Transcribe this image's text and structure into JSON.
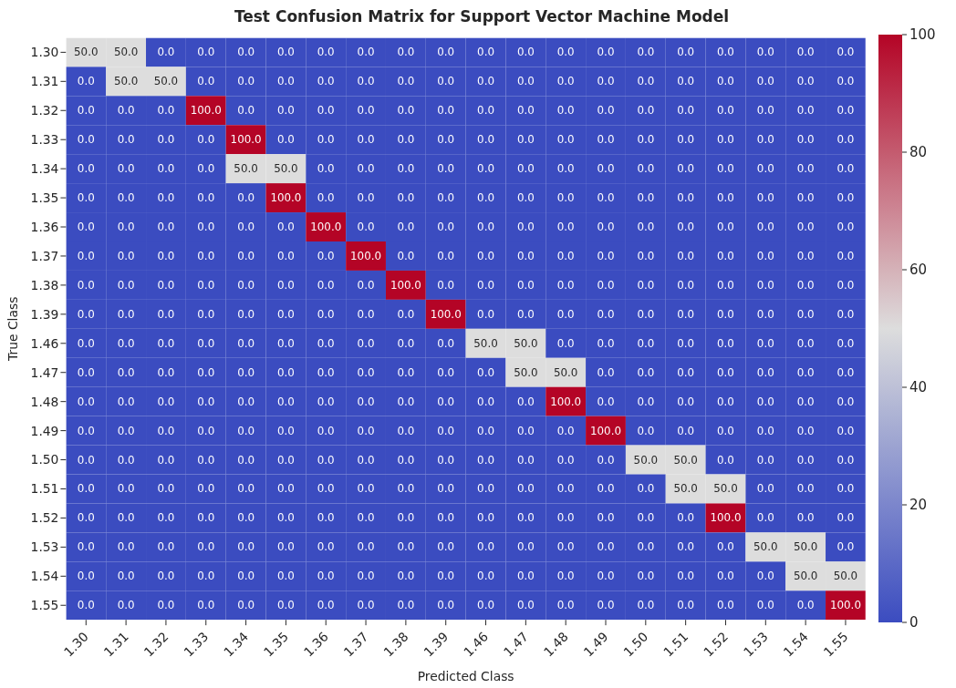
{
  "chart_data": {
    "type": "heatmap",
    "title": "Test Confusion Matrix for Support Vector Machine Model",
    "xlabel": "Predicted Class",
    "ylabel": "True Class",
    "categories": [
      "1.30",
      "1.31",
      "1.32",
      "1.33",
      "1.34",
      "1.35",
      "1.36",
      "1.37",
      "1.38",
      "1.39",
      "1.46",
      "1.47",
      "1.48",
      "1.49",
      "1.50",
      "1.51",
      "1.52",
      "1.53",
      "1.54",
      "1.55"
    ],
    "y_categories": [
      "1.30",
      "1.31",
      "1.32",
      "1.33",
      "1.34",
      "1.35",
      "1.36",
      "1.37",
      "1.38",
      "1.39",
      "1.46",
      "1.47",
      "1.48",
      "1.49",
      "1.50",
      "1.51",
      "1.52",
      "1.53",
      "1.54",
      "1.55"
    ],
    "cells": [
      [
        50,
        50,
        0,
        0,
        0,
        0,
        0,
        0,
        0,
        0,
        0,
        0,
        0,
        0,
        0,
        0,
        0,
        0,
        0,
        0
      ],
      [
        0,
        50,
        50,
        0,
        0,
        0,
        0,
        0,
        0,
        0,
        0,
        0,
        0,
        0,
        0,
        0,
        0,
        0,
        0,
        0
      ],
      [
        0,
        0,
        0,
        100,
        0,
        0,
        0,
        0,
        0,
        0,
        0,
        0,
        0,
        0,
        0,
        0,
        0,
        0,
        0,
        0
      ],
      [
        0,
        0,
        0,
        0,
        100,
        0,
        0,
        0,
        0,
        0,
        0,
        0,
        0,
        0,
        0,
        0,
        0,
        0,
        0,
        0
      ],
      [
        0,
        0,
        0,
        0,
        50,
        50,
        0,
        0,
        0,
        0,
        0,
        0,
        0,
        0,
        0,
        0,
        0,
        0,
        0,
        0
      ],
      [
        0,
        0,
        0,
        0,
        0,
        100,
        0,
        0,
        0,
        0,
        0,
        0,
        0,
        0,
        0,
        0,
        0,
        0,
        0,
        0
      ],
      [
        0,
        0,
        0,
        0,
        0,
        0,
        100,
        0,
        0,
        0,
        0,
        0,
        0,
        0,
        0,
        0,
        0,
        0,
        0,
        0
      ],
      [
        0,
        0,
        0,
        0,
        0,
        0,
        0,
        100,
        0,
        0,
        0,
        0,
        0,
        0,
        0,
        0,
        0,
        0,
        0,
        0
      ],
      [
        0,
        0,
        0,
        0,
        0,
        0,
        0,
        0,
        100,
        0,
        0,
        0,
        0,
        0,
        0,
        0,
        0,
        0,
        0,
        0
      ],
      [
        0,
        0,
        0,
        0,
        0,
        0,
        0,
        0,
        0,
        100,
        0,
        0,
        0,
        0,
        0,
        0,
        0,
        0,
        0,
        0
      ],
      [
        0,
        0,
        0,
        0,
        0,
        0,
        0,
        0,
        0,
        0,
        50,
        50,
        0,
        0,
        0,
        0,
        0,
        0,
        0,
        0
      ],
      [
        0,
        0,
        0,
        0,
        0,
        0,
        0,
        0,
        0,
        0,
        0,
        50,
        50,
        0,
        0,
        0,
        0,
        0,
        0,
        0
      ],
      [
        0,
        0,
        0,
        0,
        0,
        0,
        0,
        0,
        0,
        0,
        0,
        0,
        100,
        0,
        0,
        0,
        0,
        0,
        0,
        0
      ],
      [
        0,
        0,
        0,
        0,
        0,
        0,
        0,
        0,
        0,
        0,
        0,
        0,
        0,
        100,
        0,
        0,
        0,
        0,
        0,
        0
      ],
      [
        0,
        0,
        0,
        0,
        0,
        0,
        0,
        0,
        0,
        0,
        0,
        0,
        0,
        0,
        50,
        50,
        0,
        0,
        0,
        0
      ],
      [
        0,
        0,
        0,
        0,
        0,
        0,
        0,
        0,
        0,
        0,
        0,
        0,
        0,
        0,
        0,
        50,
        50,
        0,
        0,
        0
      ],
      [
        0,
        0,
        0,
        0,
        0,
        0,
        0,
        0,
        0,
        0,
        0,
        0,
        0,
        0,
        0,
        0,
        100,
        0,
        0,
        0
      ],
      [
        0,
        0,
        0,
        0,
        0,
        0,
        0,
        0,
        0,
        0,
        0,
        0,
        0,
        0,
        0,
        0,
        0,
        50,
        50,
        0
      ],
      [
        0,
        0,
        0,
        0,
        0,
        0,
        0,
        0,
        0,
        0,
        0,
        0,
        0,
        0,
        0,
        0,
        0,
        0,
        50,
        50
      ],
      [
        0,
        0,
        0,
        0,
        0,
        0,
        0,
        0,
        0,
        0,
        0,
        0,
        0,
        0,
        0,
        0,
        0,
        0,
        0,
        100
      ]
    ],
    "cell_labels": [
      [
        "50.0",
        "50.0",
        "0.0",
        "0.0",
        "0.0",
        "0.0",
        "0.0",
        "0.0",
        "0.0",
        "0.0",
        "0.0",
        "0.0",
        "0.0",
        "0.0",
        "0.0",
        "0.0",
        "0.0",
        "0.0",
        "0.0",
        "0.0"
      ],
      [
        "0.0",
        "50.0",
        "50.0",
        "0.0",
        "0.0",
        "0.0",
        "0.0",
        "0.0",
        "0.0",
        "0.0",
        "0.0",
        "0.0",
        "0.0",
        "0.0",
        "0.0",
        "0.0",
        "0.0",
        "0.0",
        "0.0",
        "0.0"
      ],
      [
        "0.0",
        "0.0",
        "0.0",
        "100.0",
        "0.0",
        "0.0",
        "0.0",
        "0.0",
        "0.0",
        "0.0",
        "0.0",
        "0.0",
        "0.0",
        "0.0",
        "0.0",
        "0.0",
        "0.0",
        "0.0",
        "0.0",
        "0.0"
      ],
      [
        "0.0",
        "0.0",
        "0.0",
        "0.0",
        "100.0",
        "0.0",
        "0.0",
        "0.0",
        "0.0",
        "0.0",
        "0.0",
        "0.0",
        "0.0",
        "0.0",
        "0.0",
        "0.0",
        "0.0",
        "0.0",
        "0.0",
        "0.0"
      ],
      [
        "0.0",
        "0.0",
        "0.0",
        "0.0",
        "50.0",
        "50.0",
        "0.0",
        "0.0",
        "0.0",
        "0.0",
        "0.0",
        "0.0",
        "0.0",
        "0.0",
        "0.0",
        "0.0",
        "0.0",
        "0.0",
        "0.0",
        "0.0"
      ],
      [
        "0.0",
        "0.0",
        "0.0",
        "0.0",
        "0.0",
        "100.0",
        "0.0",
        "0.0",
        "0.0",
        "0.0",
        "0.0",
        "0.0",
        "0.0",
        "0.0",
        "0.0",
        "0.0",
        "0.0",
        "0.0",
        "0.0",
        "0.0"
      ],
      [
        "0.0",
        "0.0",
        "0.0",
        "0.0",
        "0.0",
        "0.0",
        "100.0",
        "0.0",
        "0.0",
        "0.0",
        "0.0",
        "0.0",
        "0.0",
        "0.0",
        "0.0",
        "0.0",
        "0.0",
        "0.0",
        "0.0",
        "0.0"
      ],
      [
        "0.0",
        "0.0",
        "0.0",
        "0.0",
        "0.0",
        "0.0",
        "0.0",
        "100.0",
        "0.0",
        "0.0",
        "0.0",
        "0.0",
        "0.0",
        "0.0",
        "0.0",
        "0.0",
        "0.0",
        "0.0",
        "0.0",
        "0.0"
      ],
      [
        "0.0",
        "0.0",
        "0.0",
        "0.0",
        "0.0",
        "0.0",
        "0.0",
        "0.0",
        "100.0",
        "0.0",
        "0.0",
        "0.0",
        "0.0",
        "0.0",
        "0.0",
        "0.0",
        "0.0",
        "0.0",
        "0.0",
        "0.0"
      ],
      [
        "0.0",
        "0.0",
        "0.0",
        "0.0",
        "0.0",
        "0.0",
        "0.0",
        "0.0",
        "0.0",
        "100.0",
        "0.0",
        "0.0",
        "0.0",
        "0.0",
        "0.0",
        "0.0",
        "0.0",
        "0.0",
        "0.0",
        "0.0"
      ],
      [
        "0.0",
        "0.0",
        "0.0",
        "0.0",
        "0.0",
        "0.0",
        "0.0",
        "0.0",
        "0.0",
        "0.0",
        "50.0",
        "50.0",
        "0.0",
        "0.0",
        "0.0",
        "0.0",
        "0.0",
        "0.0",
        "0.0",
        "0.0"
      ],
      [
        "0.0",
        "0.0",
        "0.0",
        "0.0",
        "0.0",
        "0.0",
        "0.0",
        "0.0",
        "0.0",
        "0.0",
        "0.0",
        "50.0",
        "50.0",
        "0.0",
        "0.0",
        "0.0",
        "0.0",
        "0.0",
        "0.0",
        "0.0"
      ],
      [
        "0.0",
        "0.0",
        "0.0",
        "0.0",
        "0.0",
        "0.0",
        "0.0",
        "0.0",
        "0.0",
        "0.0",
        "0.0",
        "0.0",
        "100.0",
        "0.0",
        "0.0",
        "0.0",
        "0.0",
        "0.0",
        "0.0",
        "0.0"
      ],
      [
        "0.0",
        "0.0",
        "0.0",
        "0.0",
        "0.0",
        "0.0",
        "0.0",
        "0.0",
        "0.0",
        "0.0",
        "0.0",
        "0.0",
        "0.0",
        "100.0",
        "0.0",
        "0.0",
        "0.0",
        "0.0",
        "0.0",
        "0.0"
      ],
      [
        "0.0",
        "0.0",
        "0.0",
        "0.0",
        "0.0",
        "0.0",
        "0.0",
        "0.0",
        "0.0",
        "0.0",
        "0.0",
        "0.0",
        "0.0",
        "0.0",
        "50.0",
        "50.0",
        "0.0",
        "0.0",
        "0.0",
        "0.0"
      ],
      [
        "0.0",
        "0.0",
        "0.0",
        "0.0",
        "0.0",
        "0.0",
        "0.0",
        "0.0",
        "0.0",
        "0.0",
        "0.0",
        "0.0",
        "0.0",
        "0.0",
        "0.0",
        "50.0",
        "50.0",
        "0.0",
        "0.0",
        "0.0"
      ],
      [
        "0.0",
        "0.0",
        "0.0",
        "0.0",
        "0.0",
        "0.0",
        "0.0",
        "0.0",
        "0.0",
        "0.0",
        "0.0",
        "0.0",
        "0.0",
        "0.0",
        "0.0",
        "0.0",
        "100.0",
        "0.0",
        "0.0",
        "0.0"
      ],
      [
        "0.0",
        "0.0",
        "0.0",
        "0.0",
        "0.0",
        "0.0",
        "0.0",
        "0.0",
        "0.0",
        "0.0",
        "0.0",
        "0.0",
        "0.0",
        "0.0",
        "0.0",
        "0.0",
        "0.0",
        "50.0",
        "50.0",
        "0.0"
      ],
      [
        "0.0",
        "0.0",
        "0.0",
        "0.0",
        "0.0",
        "0.0",
        "0.0",
        "0.0",
        "0.0",
        "0.0",
        "0.0",
        "0.0",
        "0.0",
        "0.0",
        "0.0",
        "0.0",
        "0.0",
        "0.0",
        "50.0",
        "50.0"
      ],
      [
        "0.0",
        "0.0",
        "0.0",
        "0.0",
        "0.0",
        "0.0",
        "0.0",
        "0.0",
        "0.0",
        "0.0",
        "0.0",
        "0.0",
        "0.0",
        "0.0",
        "0.0",
        "0.0",
        "0.0",
        "0.0",
        "0.0",
        "100.0"
      ]
    ],
    "clim": [
      0,
      100
    ],
    "cticks": [
      0,
      20,
      40,
      60,
      80,
      100
    ]
  }
}
